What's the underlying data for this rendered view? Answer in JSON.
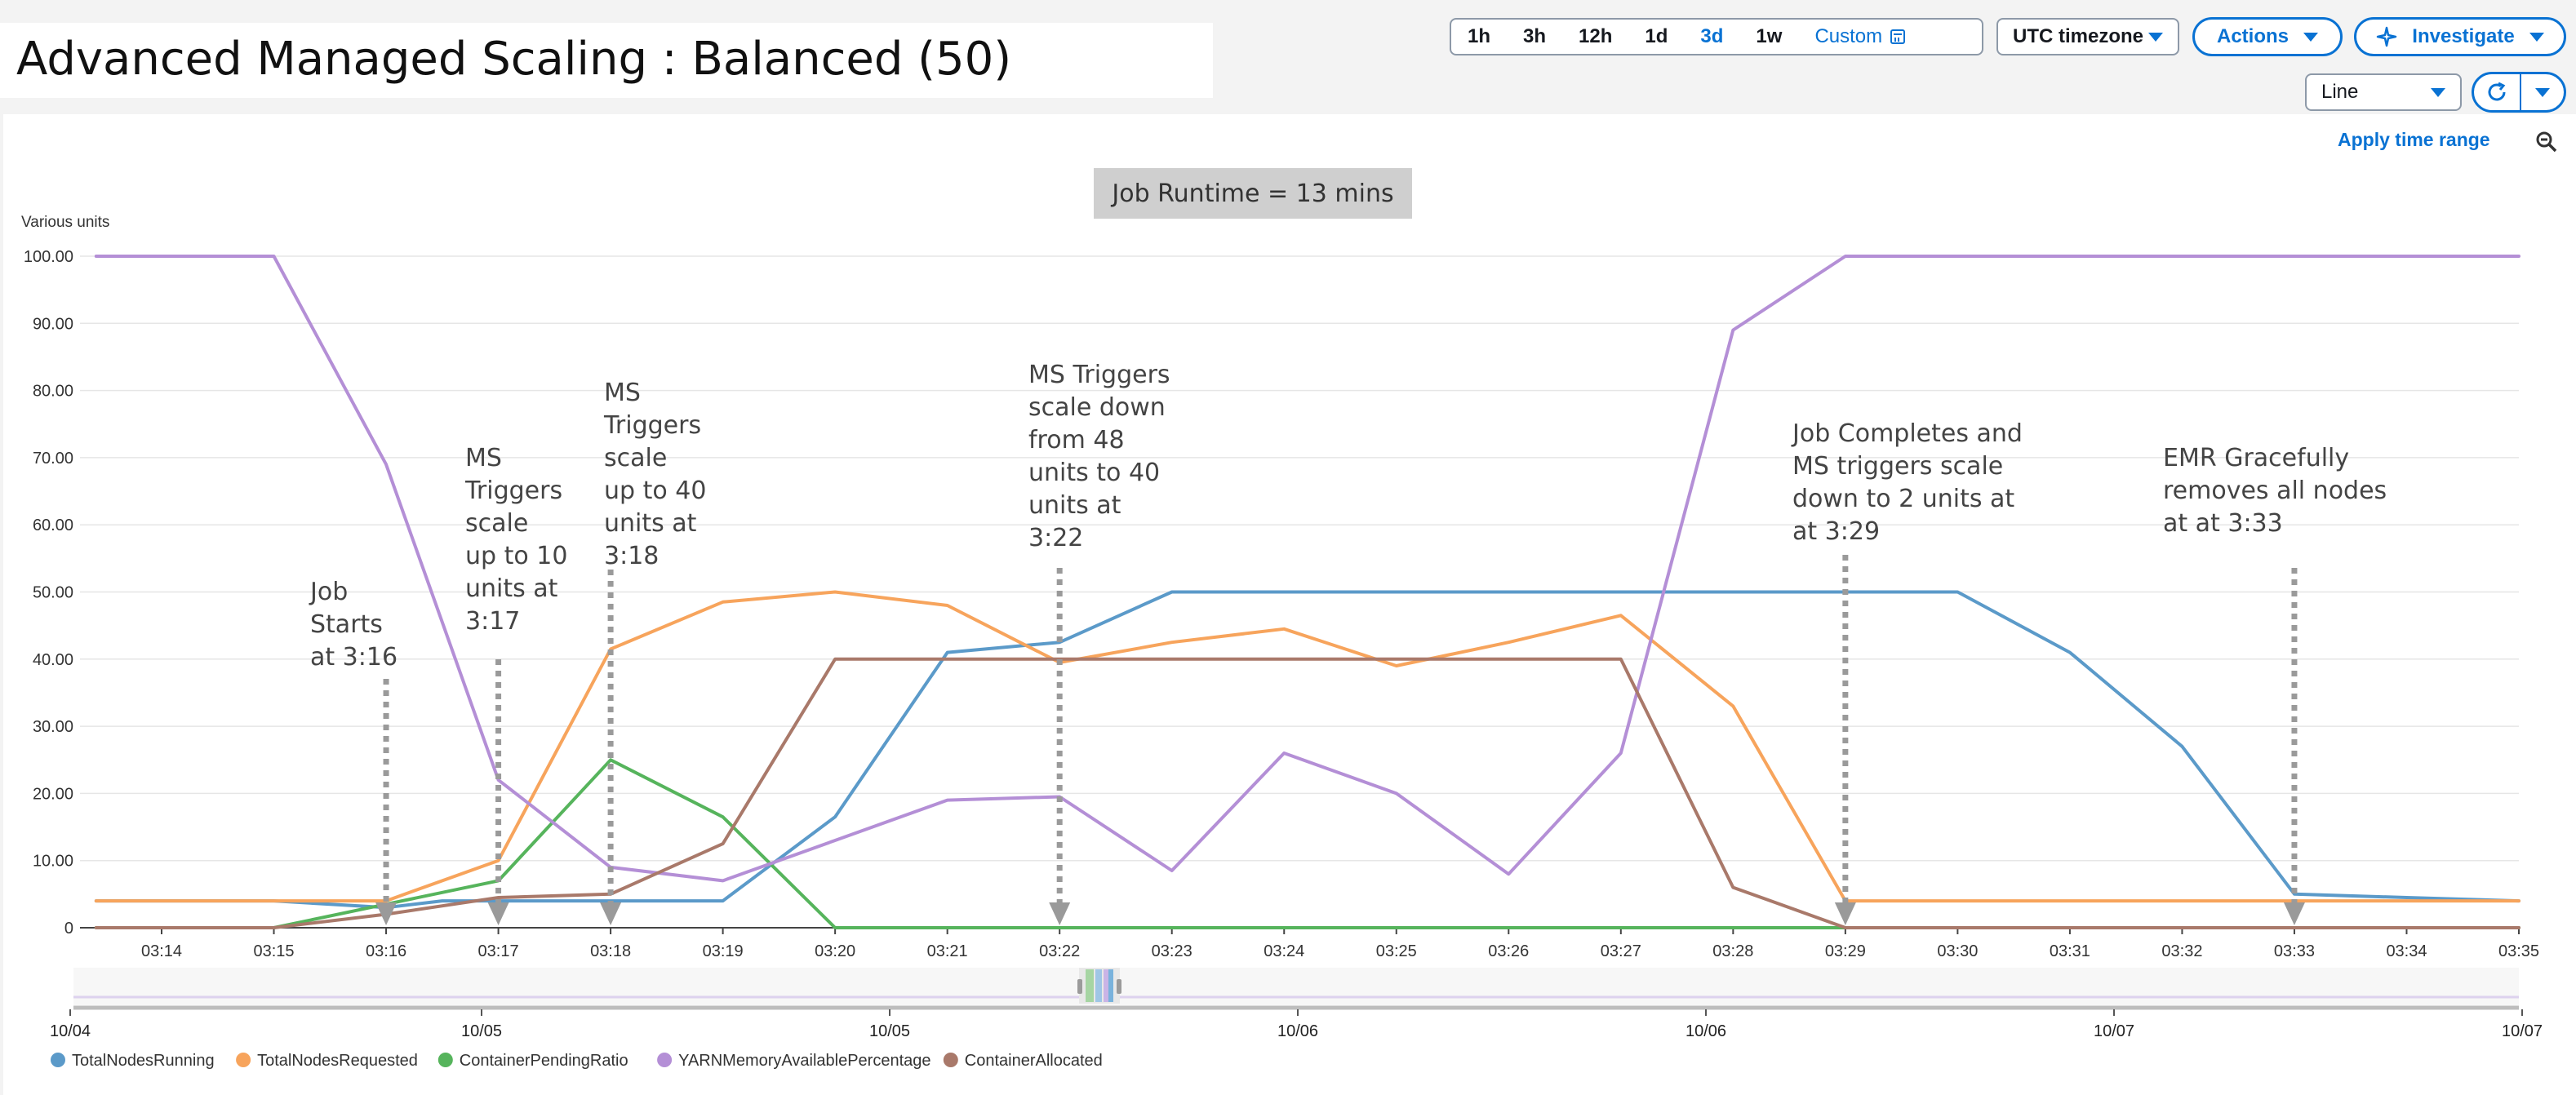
{
  "page": {
    "title": "Advanced Managed Scaling : Balanced (50)"
  },
  "toolbar": {
    "time_ranges": [
      "1h",
      "3h",
      "12h",
      "1d",
      "3d",
      "1w"
    ],
    "active_range": "3d",
    "custom_label": "Custom",
    "custom_icon": "calendar-icon",
    "timezone_label": "UTC timezone",
    "actions_label": "Actions",
    "investigate_label": "Investigate",
    "investigate_icon": "sparkle-icon",
    "chart_type_label": "Line",
    "refresh_icon": "refresh-icon",
    "apply_time_range_label": "Apply time range",
    "zoom_icon": "zoom-out-icon"
  },
  "annotations": {
    "runtime": "Job Runtime = 13 mins",
    "job_starts": [
      "Job",
      "Starts",
      "at 3:16"
    ],
    "scale_up_10": [
      "MS",
      "Triggers",
      "scale",
      "up to 10",
      "units at",
      "3:17"
    ],
    "scale_up_40": [
      "MS",
      "Triggers",
      "scale",
      "up to 40",
      "units at",
      "3:18"
    ],
    "scale_down_48": [
      "MS Triggers",
      "scale down",
      "from 48",
      "units to 40",
      "units at",
      "3:22"
    ],
    "job_completes": [
      "Job Completes and",
      "MS triggers scale",
      "down to 2 units at",
      "at 3:29"
    ],
    "emr_removes": [
      "EMR Gracefully",
      "removes all nodes",
      "at at 3:33"
    ]
  },
  "colors": {
    "TotalNodesRunning": "#5b9ac9",
    "TotalNodesRequested": "#f7a45c",
    "ContainerPendingRatio": "#56b45c",
    "YARNMemoryAvailablePercentage": "#b48fd6",
    "ContainerAllocated": "#a9796a",
    "accent": "#0972d3",
    "marker": "#9a9a9a"
  },
  "chart_data": {
    "type": "line",
    "ylabel": "Various units",
    "ylim": [
      0,
      100
    ],
    "xlim": [
      "03:13:25",
      "03:35"
    ],
    "grid": true,
    "legend_placement": "bottom-left",
    "y_ticks": [
      "100.00",
      "90.00",
      "80.00",
      "70.00",
      "60.00",
      "50.00",
      "40.00",
      "30.00",
      "20.00",
      "10.00",
      "0"
    ],
    "x_ticks": [
      "03:14",
      "03:15",
      "03:16",
      "03:17",
      "03:18",
      "03:19",
      "03:20",
      "03:21",
      "03:22",
      "03:23",
      "03:24",
      "03:25",
      "03:26",
      "03:27",
      "03:28",
      "03:29",
      "03:30",
      "03:31",
      "03:32",
      "03:33",
      "03:34",
      "03:35"
    ],
    "navigator_labels": [
      "10/04",
      "10/05",
      "10/05",
      "10/06",
      "10/06",
      "10/07",
      "10/07"
    ],
    "markers_at": [
      "03:16",
      "03:17",
      "03:18",
      "03:22",
      "03:29",
      "03:33"
    ],
    "series": [
      {
        "name": "TotalNodesRunning",
        "points": [
          [
            "03:13:25",
            4
          ],
          [
            "03:15",
            4
          ],
          [
            "03:16",
            3
          ],
          [
            "03:16:30",
            4
          ],
          [
            "03:17",
            4
          ],
          [
            "03:18",
            4
          ],
          [
            "03:19",
            4
          ],
          [
            "03:20",
            16.5
          ],
          [
            "03:21",
            41
          ],
          [
            "03:22",
            42.5
          ],
          [
            "03:23",
            50
          ],
          [
            "03:24",
            50
          ],
          [
            "03:25",
            50
          ],
          [
            "03:26",
            50
          ],
          [
            "03:27",
            50
          ],
          [
            "03:28",
            50
          ],
          [
            "03:29",
            50
          ],
          [
            "03:30",
            50
          ],
          [
            "03:31",
            41
          ],
          [
            "03:32",
            27
          ],
          [
            "03:33",
            5
          ],
          [
            "03:34",
            4.5
          ],
          [
            "03:35",
            4
          ]
        ]
      },
      {
        "name": "TotalNodesRequested",
        "points": [
          [
            "03:13:25",
            4
          ],
          [
            "03:15",
            4
          ],
          [
            "03:16",
            4
          ],
          [
            "03:17",
            10
          ],
          [
            "03:18",
            41.5
          ],
          [
            "03:19",
            48.5
          ],
          [
            "03:20",
            50
          ],
          [
            "03:21",
            48
          ],
          [
            "03:22",
            39.5
          ],
          [
            "03:23",
            42.5
          ],
          [
            "03:24",
            44.5
          ],
          [
            "03:25",
            39
          ],
          [
            "03:26",
            42.5
          ],
          [
            "03:27",
            46.5
          ],
          [
            "03:28",
            33
          ],
          [
            "03:29",
            4
          ],
          [
            "03:30",
            4
          ],
          [
            "03:31",
            4
          ],
          [
            "03:32",
            4
          ],
          [
            "03:33",
            4
          ],
          [
            "03:34",
            4
          ],
          [
            "03:35",
            4
          ]
        ]
      },
      {
        "name": "ContainerPendingRatio",
        "points": [
          [
            "03:13:25",
            0
          ],
          [
            "03:15",
            0
          ],
          [
            "03:16",
            3.5
          ],
          [
            "03:17",
            7
          ],
          [
            "03:18",
            25
          ],
          [
            "03:19",
            16.5
          ],
          [
            "03:20",
            0
          ],
          [
            "03:21",
            0
          ],
          [
            "03:22",
            0
          ],
          [
            "03:23",
            0
          ],
          [
            "03:24",
            0
          ],
          [
            "03:25",
            0
          ],
          [
            "03:26",
            0
          ],
          [
            "03:27",
            0
          ],
          [
            "03:28",
            0
          ],
          [
            "03:29",
            0
          ],
          [
            "03:30",
            0
          ],
          [
            "03:31",
            0
          ],
          [
            "03:32",
            0
          ],
          [
            "03:33",
            0
          ],
          [
            "03:34",
            0
          ],
          [
            "03:35",
            0
          ]
        ]
      },
      {
        "name": "YARNMemoryAvailablePercentage",
        "points": [
          [
            "03:13:25",
            100
          ],
          [
            "03:15",
            100
          ],
          [
            "03:16",
            69
          ],
          [
            "03:17",
            22
          ],
          [
            "03:18",
            9
          ],
          [
            "03:19",
            7
          ],
          [
            "03:20",
            13
          ],
          [
            "03:21",
            19
          ],
          [
            "03:22",
            19.5
          ],
          [
            "03:23",
            8.5
          ],
          [
            "03:24",
            26
          ],
          [
            "03:25",
            20
          ],
          [
            "03:26",
            8
          ],
          [
            "03:27",
            26
          ],
          [
            "03:28",
            89
          ],
          [
            "03:29",
            100
          ],
          [
            "03:30",
            100
          ],
          [
            "03:31",
            100
          ],
          [
            "03:32",
            100
          ],
          [
            "03:33",
            100
          ],
          [
            "03:34",
            100
          ],
          [
            "03:35",
            100
          ]
        ]
      },
      {
        "name": "ContainerAllocated",
        "points": [
          [
            "03:13:25",
            0
          ],
          [
            "03:15",
            0
          ],
          [
            "03:16",
            2
          ],
          [
            "03:17",
            4.5
          ],
          [
            "03:18",
            5
          ],
          [
            "03:19",
            12.5
          ],
          [
            "03:20",
            40
          ],
          [
            "03:21",
            40
          ],
          [
            "03:22",
            40
          ],
          [
            "03:23",
            40
          ],
          [
            "03:24",
            40
          ],
          [
            "03:25",
            40
          ],
          [
            "03:26",
            40
          ],
          [
            "03:27",
            40
          ],
          [
            "03:28",
            6
          ],
          [
            "03:29",
            0
          ],
          [
            "03:30",
            0
          ],
          [
            "03:31",
            0
          ],
          [
            "03:32",
            0
          ],
          [
            "03:33",
            0
          ],
          [
            "03:34",
            0
          ],
          [
            "03:35",
            0
          ]
        ]
      }
    ]
  }
}
